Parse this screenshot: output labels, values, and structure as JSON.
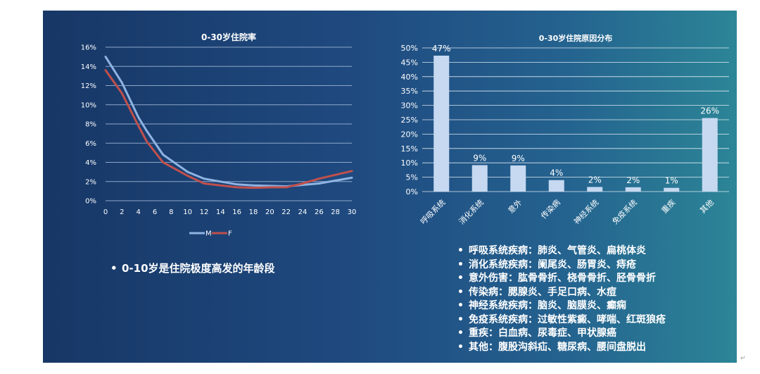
{
  "left_note": "0-10岁是住院极度高发的年龄段",
  "right_list": [
    "呼吸系统疾病：肺炎、气管炎、扁桃体炎",
    "消化系统疾病：阑尾炎、肠胃炎、痔疮",
    "意外伤害：肱骨骨折、桡骨骨折、胫骨骨折",
    "传染病：腮腺炎、手足口病、水痘",
    "神经系统疾病：脑炎、脑膜炎、癫痫",
    "免疫系统疾病：过敏性紫癜、哮喘、红斑狼疮",
    "重疾：白血病、尿毒症、甲状腺癌",
    "其他：腹股沟斜疝、糖尿病、腰间盘脱出"
  ],
  "return_mark": "↵",
  "chart_data": [
    {
      "type": "line",
      "title": "0-30岁住院率",
      "xlabel": "",
      "ylabel": "",
      "x": [
        0,
        2,
        4,
        5,
        7,
        10,
        12,
        14,
        16,
        18,
        20,
        22,
        24,
        26,
        28,
        30
      ],
      "xticks": [
        0,
        2,
        4,
        6,
        8,
        10,
        12,
        14,
        16,
        18,
        20,
        22,
        24,
        26,
        28,
        30
      ],
      "xlim": [
        0,
        30
      ],
      "ylim": [
        0,
        16
      ],
      "yticks": [
        0,
        2,
        4,
        6,
        8,
        10,
        12,
        14,
        16
      ],
      "ytick_suffix": "%",
      "grid": true,
      "legend": "bottom",
      "series": [
        {
          "name": "M",
          "color": "#8fb4e3",
          "values": [
            15.0,
            12.3,
            8.7,
            7.3,
            4.8,
            3.0,
            2.3,
            2.0,
            1.7,
            1.6,
            1.55,
            1.5,
            1.65,
            1.8,
            2.1,
            2.4
          ]
        },
        {
          "name": "F",
          "color": "#c0504d",
          "values": [
            13.6,
            11.2,
            7.8,
            6.2,
            4.0,
            2.6,
            1.8,
            1.6,
            1.4,
            1.35,
            1.4,
            1.4,
            1.8,
            2.3,
            2.7,
            3.1
          ]
        }
      ]
    },
    {
      "type": "bar",
      "title": "0-30岁住院原因分布",
      "xlabel": "",
      "ylabel": "",
      "categories": [
        "呼吸系统",
        "消化系统",
        "意外",
        "传染病",
        "神经系统",
        "免疫系统",
        "重疾",
        "其他"
      ],
      "values": [
        47,
        9,
        9,
        4,
        2,
        2,
        1,
        26
      ],
      "values_plot": [
        47.3,
        9.2,
        9.1,
        4.0,
        1.6,
        1.5,
        1.3,
        25.6
      ],
      "labels": [
        "47%",
        "9%",
        "9%",
        "4%",
        "2%",
        "2%",
        "1%",
        "26%"
      ],
      "ylim": [
        0,
        50
      ],
      "yticks": [
        0,
        5,
        10,
        15,
        20,
        25,
        30,
        35,
        40,
        45,
        50
      ],
      "ytick_suffix": "%",
      "grid": true,
      "bar_color": "#c6d9f1"
    }
  ]
}
